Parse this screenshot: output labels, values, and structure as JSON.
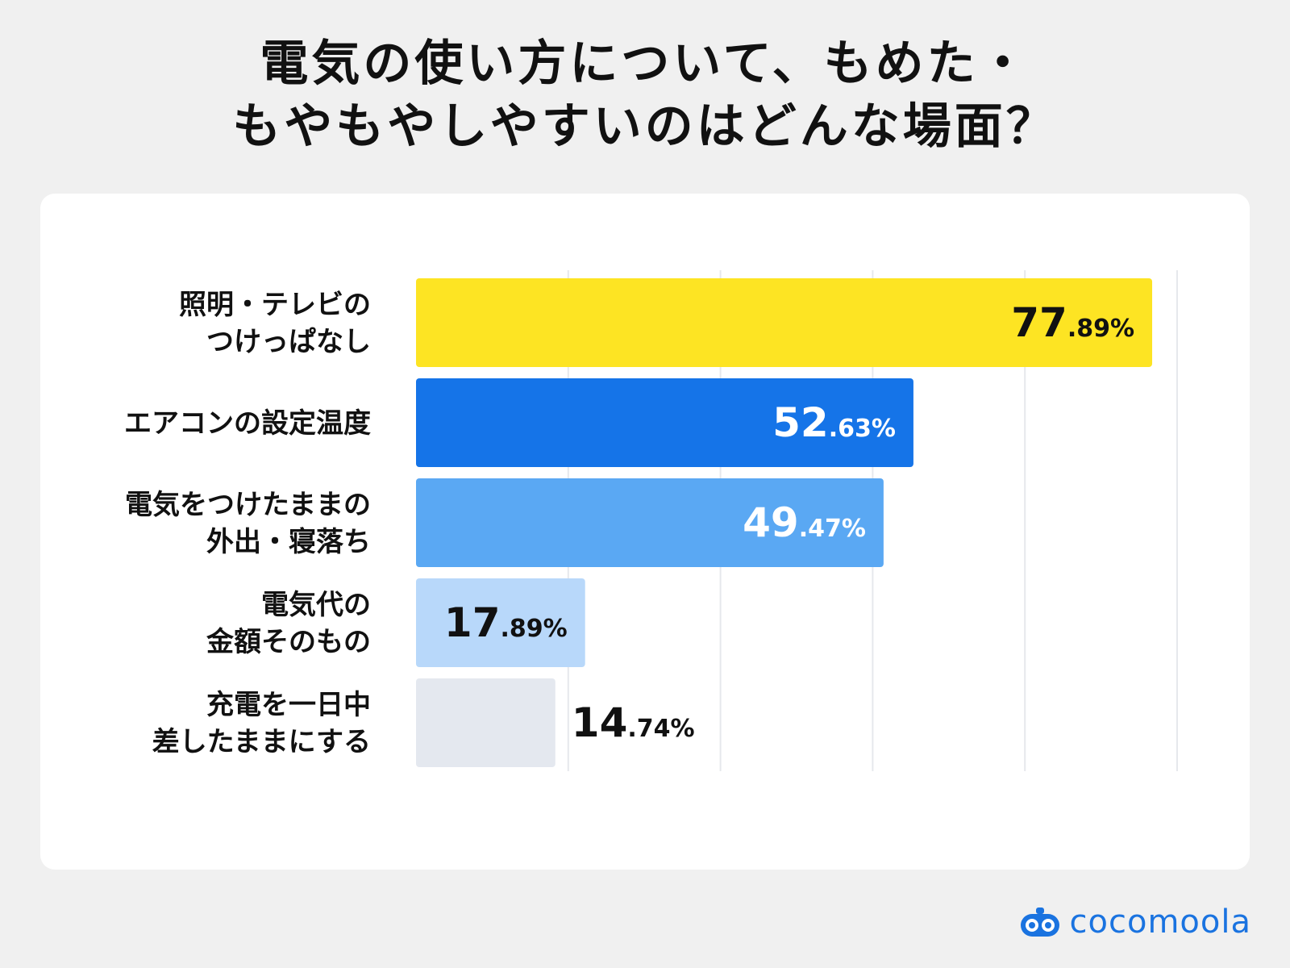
{
  "title_lines": [
    "電気の使い方について、もめた・",
    "もやもやしやすいのはどんな場面？"
  ],
  "brand": {
    "name": "cocomoola",
    "color": "#1a73e0",
    "icon": "cocomoola-logo-icon"
  },
  "chart_data": {
    "type": "bar",
    "orientation": "horizontal",
    "title": "電気の使い方について、もめた・もやもやしやすいのはどんな場面？",
    "categories": [
      "照明・テレビの\nつけっぱなし",
      "エアコンの設定温度",
      "電気をつけたままの\n外出・寝落ち",
      "電気代の\n金額そのもの",
      "充電を一日中\n差したままにする"
    ],
    "values": [
      77.89,
      52.63,
      49.47,
      17.89,
      14.74
    ],
    "value_labels": [
      {
        "int": "77",
        "dec": ".89%"
      },
      {
        "int": "52",
        "dec": ".63%"
      },
      {
        "int": "49",
        "dec": ".47%"
      },
      {
        "int": "17",
        "dec": ".89%"
      },
      {
        "int": "14",
        "dec": ".74%"
      }
    ],
    "unit": "%",
    "bar_colors": [
      "#fde423",
      "#1574e8",
      "#5aa8f3",
      "#b8d8fa",
      "#e4e8ef"
    ],
    "label_colors": [
      "#111111",
      "#ffffff",
      "#ffffff",
      "#111111",
      "#111111"
    ],
    "label_inside": [
      true,
      true,
      true,
      true,
      false
    ],
    "xlim": [
      0,
      80
    ],
    "grid": true,
    "xlabel": "",
    "ylabel": ""
  }
}
